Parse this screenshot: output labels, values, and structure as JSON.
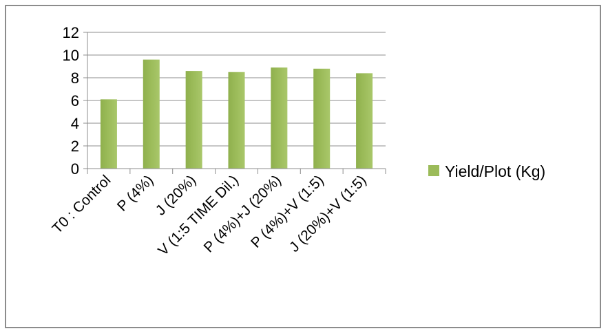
{
  "chart_data": {
    "type": "bar",
    "categories": [
      "T0 : Control",
      "P (4%)",
      "J (20%)",
      "V (1:5 TIME Dil.)",
      "P (4%)+J (20%)",
      "P (4%)+V (1:5)",
      "J (20%)+V (1:5)"
    ],
    "series": [
      {
        "name": "Yield/Plot (Kg)",
        "values": [
          6.1,
          9.6,
          8.6,
          8.5,
          8.9,
          8.8,
          8.4
        ],
        "color": "#9bbb59"
      }
    ],
    "ylim": [
      0,
      12
    ],
    "yticks": [
      "0",
      "2",
      "4",
      "6",
      "8",
      "10",
      "12"
    ],
    "grid": true,
    "legend_position": "right",
    "title": "",
    "xlabel": "",
    "ylabel": ""
  }
}
